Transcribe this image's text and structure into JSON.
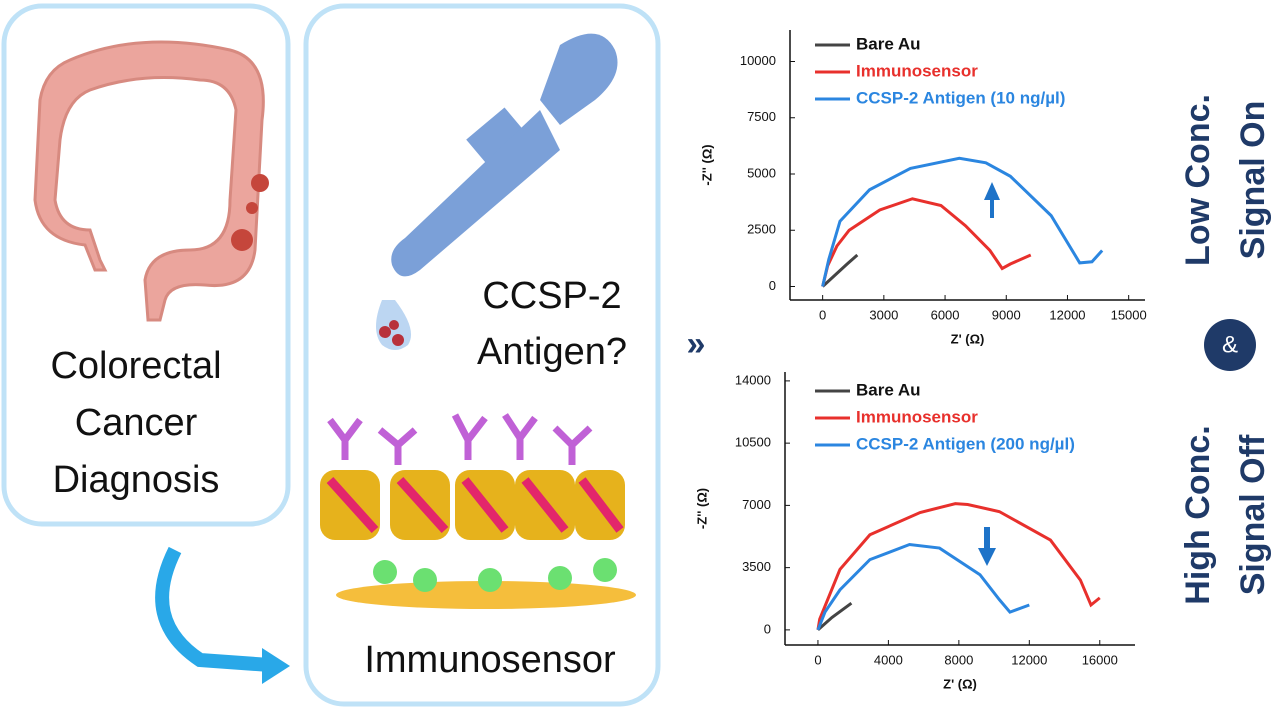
{
  "left_panel": {
    "lines": [
      "Colorectal",
      "Cancer",
      "Diagnosis"
    ]
  },
  "middle_panel": {
    "question": [
      "CCSP-2",
      "Antigen?"
    ],
    "sensor": "Immunosensor"
  },
  "side_labels": {
    "low": "Low Conc.",
    "on": "Signal On",
    "and": "&",
    "high": "High Conc.",
    "off": "Signal Off"
  },
  "chart_data": [
    {
      "type": "line",
      "xlabel": "Z' (Ω)",
      "ylabel": "-Z'' (Ω)",
      "xlim": [
        -1600,
        15800
      ],
      "ylim": [
        -600,
        11400
      ],
      "xticks": [
        0,
        3000,
        6000,
        9000,
        12000,
        15000
      ],
      "yticks": [
        0,
        2500,
        5000,
        7500,
        10000
      ],
      "series": [
        {
          "name": "Bare Au",
          "color": "#444444",
          "x": [
            0,
            600,
            1200,
            1700
          ],
          "values": [
            0,
            500,
            1000,
            1400
          ]
        },
        {
          "name": "Immunosensor",
          "color": "#e8302c",
          "x": [
            0,
            250,
            700,
            1300,
            2800,
            4400,
            5800,
            7000,
            8200,
            8800,
            9200,
            10200
          ],
          "values": [
            0,
            930,
            1800,
            2500,
            3400,
            3900,
            3600,
            2700,
            1600,
            800,
            1000,
            1400
          ]
        },
        {
          "name": "CCSP-2 Antigen (10 ng/µl)",
          "color": "#2b86e0",
          "x": [
            0,
            300,
            850,
            2300,
            4300,
            6700,
            8000,
            9200,
            11200,
            12600,
            13200,
            13700
          ],
          "values": [
            0,
            1200,
            2900,
            4300,
            5250,
            5700,
            5500,
            4900,
            3150,
            1050,
            1100,
            1600
          ]
        }
      ]
    },
    {
      "type": "line",
      "xlabel": "Z' (Ω)",
      "ylabel": "-Z'' (Ω)",
      "xlim": [
        -1870,
        18000
      ],
      "ylim": [
        -850,
        14500
      ],
      "xticks": [
        0,
        4000,
        8000,
        12000,
        16000
      ],
      "yticks": [
        0,
        3500,
        7000,
        10500,
        14000
      ],
      "series": [
        {
          "name": "Bare Au",
          "color": "#444444",
          "x": [
            0,
            800,
            1900
          ],
          "values": [
            0,
            700,
            1500
          ]
        },
        {
          "name": "Immunosensor",
          "color": "#e8302c",
          "x": [
            0,
            100,
            1250,
            2950,
            5800,
            7800,
            8500,
            10300,
            13200,
            14900,
            15500,
            16000
          ],
          "values": [
            0,
            600,
            3400,
            5350,
            6600,
            7100,
            7050,
            6650,
            5050,
            2800,
            1400,
            1800
          ]
        },
        {
          "name": "CCSP-2 Antigen (200 ng/µl)",
          "color": "#2b86e0",
          "x": [
            0,
            400,
            1250,
            2950,
            5200,
            6900,
            9200,
            10300,
            10900,
            12000
          ],
          "values": [
            0,
            1000,
            2250,
            3950,
            4800,
            4600,
            3100,
            1700,
            1000,
            1400
          ]
        }
      ]
    }
  ]
}
